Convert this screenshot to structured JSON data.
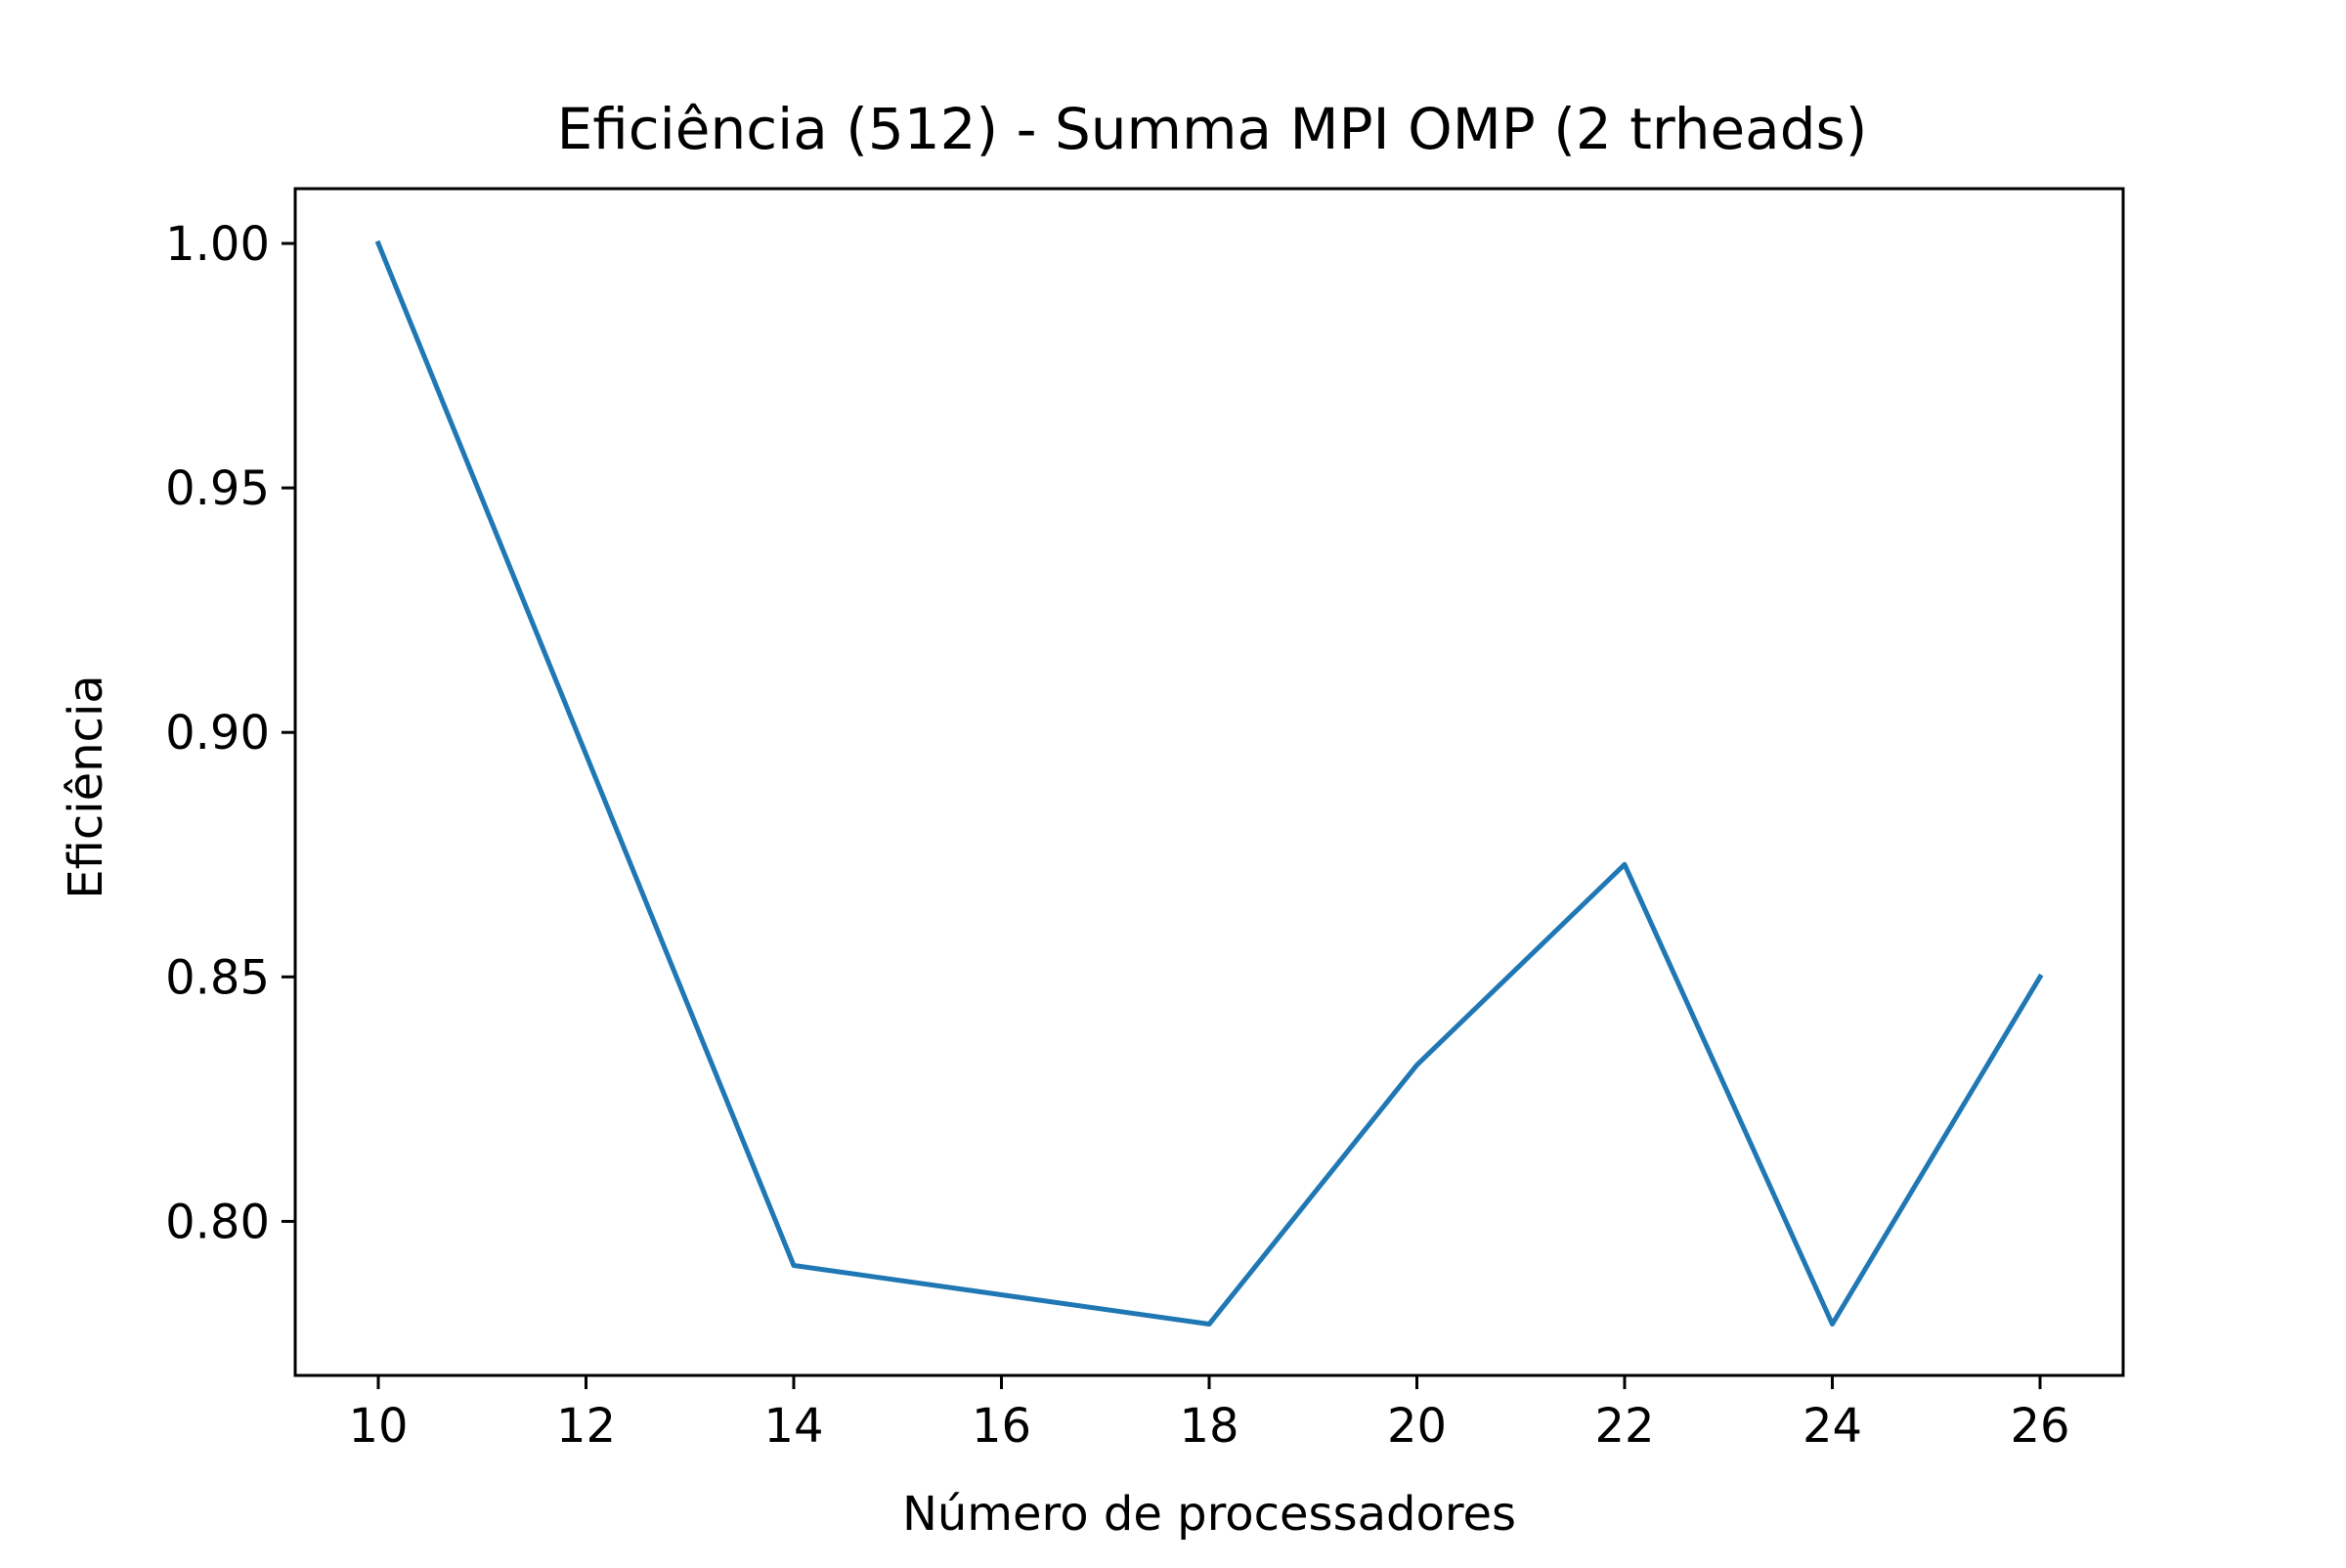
{
  "chart_data": {
    "type": "line",
    "title": "Eficiência (512) - Summa MPI OMP (2 trheads)",
    "xlabel": "Número de processadores",
    "ylabel": "Eficiência",
    "x": [
      10,
      14,
      18,
      20,
      22,
      24,
      26
    ],
    "series": [
      {
        "values": [
          1.0,
          0.791,
          0.779,
          0.832,
          0.873,
          0.779,
          0.85
        ],
        "color": "#1f77b4"
      }
    ],
    "xlim": [
      9.2,
      26.8
    ],
    "ylim": [
      0.7685,
      1.0112
    ],
    "xticks": [
      10,
      12,
      14,
      16,
      18,
      20,
      22,
      24,
      26
    ],
    "xtick_labels": [
      "10",
      "12",
      "14",
      "16",
      "18",
      "20",
      "22",
      "24",
      "26"
    ],
    "yticks": [
      0.8,
      0.85,
      0.9,
      0.95,
      1.0
    ],
    "ytick_labels": [
      "0.80",
      "0.85",
      "0.90",
      "0.95",
      "1.00"
    ],
    "grid": false,
    "legend": "none"
  }
}
